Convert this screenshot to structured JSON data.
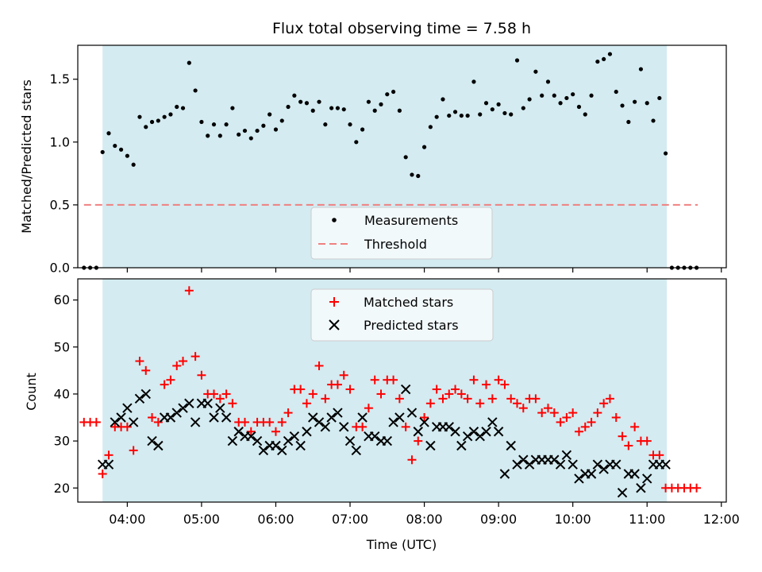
{
  "chart_data": [
    {
      "type": "scatter",
      "title": "Flux total observing time = 7.58 h",
      "ylabel": "Matched/Predicted stars",
      "xlabel": "",
      "xlim": [
        "03:20",
        "12:04"
      ],
      "ylim": [
        0,
        1.77
      ],
      "yticks": [
        "0.0",
        "0.5",
        "1.0",
        "1.5"
      ],
      "grid": false,
      "legend_placement": "lower-center",
      "shaded_interval": [
        "03:40",
        "11:16"
      ],
      "shaded_color": "#d3ebf1",
      "threshold": {
        "name": "Threshold",
        "value": 0.5,
        "from": "03:25",
        "to": "11:41",
        "color": "#f08080",
        "style": "dashed"
      },
      "series": [
        {
          "name": "Measurements",
          "marker": "dot",
          "color": "#000000",
          "x": [
            "03:25",
            "03:30",
            "03:35",
            "03:40",
            "03:45",
            "03:50",
            "03:55",
            "04:00",
            "04:05",
            "04:10",
            "04:15",
            "04:20",
            "04:25",
            "04:30",
            "04:35",
            "04:40",
            "04:45",
            "04:50",
            "04:55",
            "05:00",
            "05:05",
            "05:10",
            "05:15",
            "05:20",
            "05:25",
            "05:30",
            "05:35",
            "05:40",
            "05:45",
            "05:50",
            "05:55",
            "06:00",
            "06:05",
            "06:10",
            "06:15",
            "06:20",
            "06:25",
            "06:30",
            "06:35",
            "06:40",
            "06:45",
            "06:50",
            "06:55",
            "07:00",
            "07:05",
            "07:10",
            "07:15",
            "07:20",
            "07:25",
            "07:30",
            "07:35",
            "07:40",
            "07:45",
            "07:50",
            "07:55",
            "08:00",
            "08:05",
            "08:10",
            "08:15",
            "08:20",
            "08:25",
            "08:30",
            "08:35",
            "08:40",
            "08:45",
            "08:50",
            "08:55",
            "09:00",
            "09:05",
            "09:10",
            "09:15",
            "09:20",
            "09:25",
            "09:30",
            "09:35",
            "09:40",
            "09:45",
            "09:50",
            "09:55",
            "10:00",
            "10:05",
            "10:10",
            "10:15",
            "10:20",
            "10:25",
            "10:30",
            "10:35",
            "10:40",
            "10:45",
            "10:50",
            "10:55",
            "11:00",
            "11:05",
            "11:10",
            "11:15",
            "11:20",
            "11:25",
            "11:30",
            "11:35",
            "11:40"
          ],
          "values": [
            0,
            0,
            0,
            0.92,
            1.07,
            0.97,
            0.94,
            0.89,
            0.82,
            1.2,
            1.12,
            1.16,
            1.17,
            1.2,
            1.22,
            1.28,
            1.27,
            1.63,
            1.41,
            1.16,
            1.05,
            1.14,
            1.05,
            1.14,
            1.27,
            1.06,
            1.09,
            1.03,
            1.09,
            1.13,
            1.22,
            1.1,
            1.17,
            1.28,
            1.37,
            1.32,
            1.31,
            1.25,
            1.32,
            1.14,
            1.27,
            1.27,
            1.26,
            1.14,
            1.0,
            1.1,
            1.32,
            1.25,
            1.3,
            1.38,
            1.4,
            1.25,
            0.88,
            0.74,
            0.73,
            0.96,
            1.12,
            1.2,
            1.34,
            1.21,
            1.24,
            1.21,
            1.21,
            1.48,
            1.22,
            1.31,
            1.26,
            1.3,
            1.23,
            1.22,
            1.65,
            1.27,
            1.34,
            1.56,
            1.37,
            1.48,
            1.37,
            1.31,
            1.35,
            1.38,
            1.28,
            1.22,
            1.37,
            1.64,
            1.66,
            1.7,
            1.4,
            1.29,
            1.16,
            1.32,
            1.58,
            1.31,
            1.17,
            1.35,
            0.91,
            0,
            0,
            0,
            0,
            0
          ]
        }
      ]
    },
    {
      "type": "scatter",
      "title": "",
      "ylabel": "Count",
      "xlabel": "Time (UTC)",
      "xlim": [
        "03:20",
        "12:04"
      ],
      "ylim": [
        17,
        64.5
      ],
      "yticks": [
        "20",
        "30",
        "40",
        "50",
        "60"
      ],
      "xticks": [
        "04:00",
        "05:00",
        "06:00",
        "07:00",
        "08:00",
        "09:00",
        "10:00",
        "11:00",
        "12:00"
      ],
      "grid": false,
      "legend_placement": "upper-center",
      "shaded_interval": [
        "03:40",
        "11:16"
      ],
      "shaded_color": "#d3ebf1",
      "series": [
        {
          "name": "Matched stars",
          "marker": "plus",
          "color": "#ff0000",
          "x": [
            "03:25",
            "03:30",
            "03:35",
            "03:40",
            "03:45",
            "03:50",
            "03:55",
            "04:00",
            "04:05",
            "04:10",
            "04:15",
            "04:20",
            "04:25",
            "04:30",
            "04:35",
            "04:40",
            "04:45",
            "04:50",
            "04:55",
            "05:00",
            "05:05",
            "05:10",
            "05:15",
            "05:20",
            "05:25",
            "05:30",
            "05:35",
            "05:40",
            "05:45",
            "05:50",
            "05:55",
            "06:00",
            "06:05",
            "06:10",
            "06:15",
            "06:20",
            "06:25",
            "06:30",
            "06:35",
            "06:40",
            "06:45",
            "06:50",
            "06:55",
            "07:00",
            "07:05",
            "07:10",
            "07:15",
            "07:20",
            "07:25",
            "07:30",
            "07:35",
            "07:40",
            "07:45",
            "07:50",
            "07:55",
            "08:00",
            "08:05",
            "08:10",
            "08:15",
            "08:20",
            "08:25",
            "08:30",
            "08:35",
            "08:40",
            "08:45",
            "08:50",
            "08:55",
            "09:00",
            "09:05",
            "09:10",
            "09:15",
            "09:20",
            "09:25",
            "09:30",
            "09:35",
            "09:40",
            "09:45",
            "09:50",
            "09:55",
            "10:00",
            "10:05",
            "10:10",
            "10:15",
            "10:20",
            "10:25",
            "10:30",
            "10:35",
            "10:40",
            "10:45",
            "10:50",
            "10:55",
            "11:00",
            "11:05",
            "11:10",
            "11:15",
            "11:20",
            "11:25",
            "11:30",
            "11:35",
            "11:40"
          ],
          "values": [
            34,
            34,
            34,
            23,
            27,
            33,
            33,
            33,
            28,
            47,
            45,
            35,
            34,
            42,
            43,
            46,
            47,
            62,
            48,
            44,
            40,
            40,
            39,
            40,
            38,
            34,
            34,
            32,
            34,
            34,
            34,
            32,
            34,
            36,
            41,
            41,
            38,
            40,
            46,
            39,
            42,
            42,
            44,
            41,
            33,
            33,
            37,
            43,
            40,
            43,
            43,
            39,
            33,
            26,
            30,
            35,
            38,
            41,
            39,
            40,
            41,
            40,
            39,
            43,
            38,
            42,
            39,
            43,
            42,
            39,
            38,
            37,
            39,
            39,
            36,
            37,
            36,
            34,
            35,
            36,
            32,
            33,
            34,
            36,
            38,
            39,
            35,
            31,
            29,
            33,
            30,
            30,
            27,
            27,
            20,
            20,
            20,
            20,
            20,
            20
          ]
        },
        {
          "name": "Predicted stars",
          "marker": "x",
          "color": "#000000",
          "x": [
            "03:40",
            "03:45",
            "03:50",
            "03:55",
            "04:00",
            "04:05",
            "04:10",
            "04:15",
            "04:20",
            "04:25",
            "04:30",
            "04:35",
            "04:40",
            "04:45",
            "04:50",
            "04:55",
            "05:00",
            "05:05",
            "05:10",
            "05:15",
            "05:20",
            "05:25",
            "05:30",
            "05:35",
            "05:40",
            "05:45",
            "05:50",
            "05:55",
            "06:00",
            "06:05",
            "06:10",
            "06:15",
            "06:20",
            "06:25",
            "06:30",
            "06:35",
            "06:40",
            "06:45",
            "06:50",
            "06:55",
            "07:00",
            "07:05",
            "07:10",
            "07:15",
            "07:20",
            "07:25",
            "07:30",
            "07:35",
            "07:40",
            "07:45",
            "07:50",
            "07:55",
            "08:00",
            "08:05",
            "08:10",
            "08:15",
            "08:20",
            "08:25",
            "08:30",
            "08:35",
            "08:40",
            "08:45",
            "08:50",
            "08:55",
            "09:00",
            "09:05",
            "09:10",
            "09:15",
            "09:20",
            "09:25",
            "09:30",
            "09:35",
            "09:40",
            "09:45",
            "09:50",
            "09:55",
            "10:00",
            "10:05",
            "10:10",
            "10:15",
            "10:20",
            "10:25",
            "10:30",
            "10:35",
            "10:40",
            "10:45",
            "10:50",
            "10:55",
            "11:00",
            "11:05",
            "11:10",
            "11:15"
          ],
          "values": [
            25,
            25,
            34,
            35,
            37,
            34,
            39,
            40,
            30,
            29,
            35,
            35,
            36,
            37,
            38,
            34,
            38,
            38,
            35,
            37,
            35,
            30,
            32,
            31,
            31,
            30,
            28,
            29,
            29,
            28,
            30,
            31,
            29,
            32,
            35,
            34,
            33,
            35,
            36,
            33,
            30,
            28,
            35,
            31,
            31,
            30,
            30,
            34,
            35,
            41,
            36,
            32,
            34,
            29,
            33,
            33,
            33,
            32,
            29,
            31,
            32,
            31,
            32,
            34,
            32,
            23,
            29,
            25,
            26,
            25,
            26,
            26,
            26,
            26,
            25,
            27,
            25,
            22,
            23,
            23,
            25,
            24,
            25,
            25,
            19,
            23,
            23,
            20,
            22,
            25,
            25,
            25
          ]
        }
      ]
    }
  ]
}
